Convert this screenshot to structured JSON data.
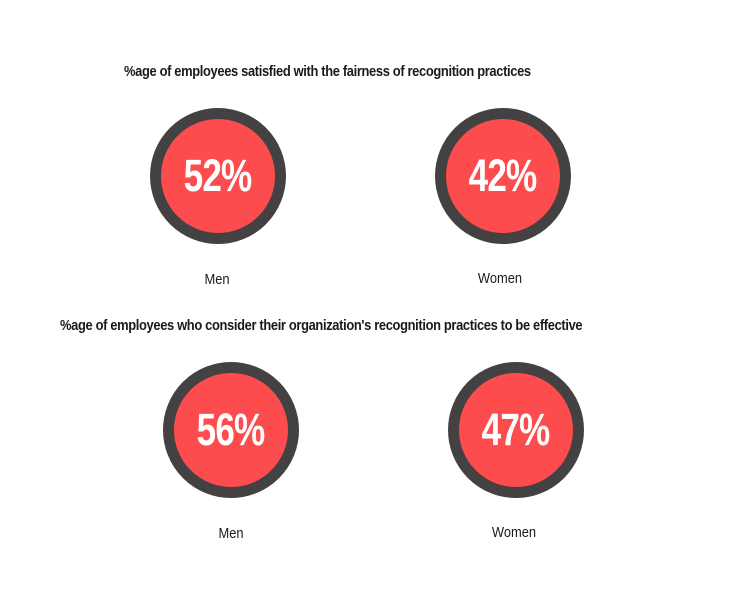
{
  "colors": {
    "fill": "#fc4c4e",
    "ring": "#434141",
    "text": "#ffffff"
  },
  "chart_data": [
    {
      "type": "pie",
      "title": "%age of employees satisfied with the fairness of recognition practices",
      "categories": [
        "Men",
        "Women"
      ],
      "values": [
        52,
        42
      ],
      "value_labels": [
        "52%",
        "42%"
      ],
      "unit": "%"
    },
    {
      "type": "pie",
      "title": "%age of employees who consider their organization's recognition practices to be effective",
      "categories": [
        "Men",
        "Women"
      ],
      "values": [
        56,
        47
      ],
      "value_labels": [
        "56%",
        "47%"
      ],
      "unit": "%"
    }
  ]
}
